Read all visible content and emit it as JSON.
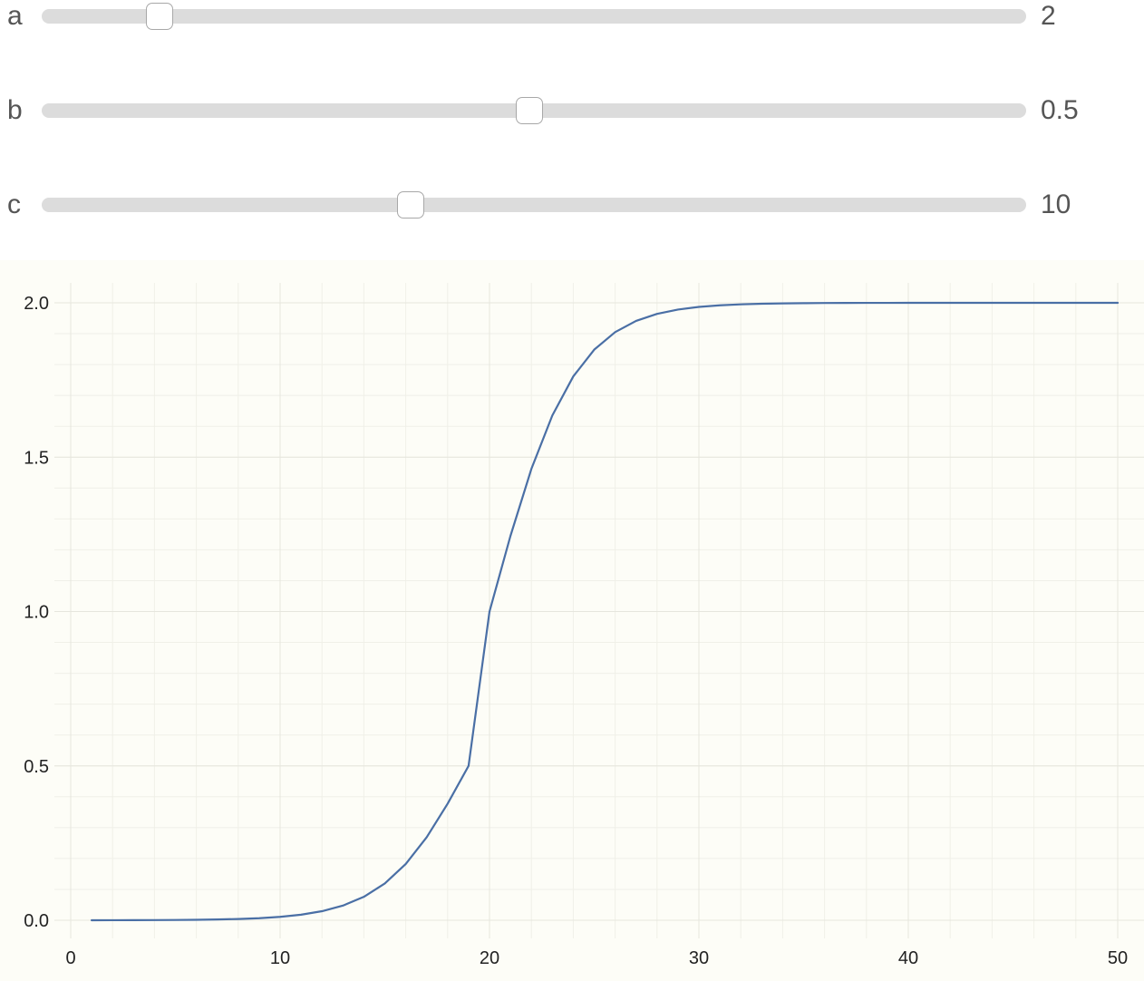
{
  "sliders": [
    {
      "label": "a",
      "value": "2",
      "fraction": 0.12
    },
    {
      "label": "b",
      "value": "0.5",
      "fraction": 0.495
    },
    {
      "label": "c",
      "value": "10",
      "fraction": 0.375
    }
  ],
  "chart_data": {
    "type": "line",
    "title": "",
    "xlabel": "",
    "ylabel": "",
    "xlim": [
      0,
      50
    ],
    "ylim": [
      0,
      2
    ],
    "x_ticks": [
      "0",
      "10",
      "20",
      "30",
      "40",
      "50"
    ],
    "y_ticks": [
      "0.0",
      "0.5",
      "1.0",
      "1.5",
      "2.0"
    ],
    "grid": true,
    "legend": "none",
    "line_color": "#4a6fa5",
    "series": [
      {
        "x": [
          1,
          2,
          3,
          4,
          5,
          6,
          7,
          8,
          9,
          10,
          11,
          12,
          13,
          14,
          15,
          16,
          17,
          18,
          19,
          20,
          21,
          22,
          23,
          24,
          25,
          26,
          27,
          28,
          29,
          30,
          31,
          32,
          33,
          34,
          35,
          36,
          37,
          38,
          39,
          40,
          41,
          42,
          43,
          44,
          45,
          46,
          47,
          48,
          49,
          50
        ],
        "y": [
          0.0001,
          0.0002,
          0.0003,
          0.0005,
          0.0009,
          0.0015,
          0.0025,
          0.0041,
          0.0067,
          0.011,
          0.018,
          0.0293,
          0.0474,
          0.0759,
          0.1192,
          0.1824,
          0.2689,
          0.3775,
          0.5,
          1.0,
          1.2449,
          1.4621,
          1.6351,
          1.7616,
          1.8483,
          1.9051,
          1.9414,
          1.9641,
          1.9782,
          1.9868,
          1.992,
          1.9951,
          1.9971,
          1.9982,
          1.9989,
          1.9994,
          1.9996,
          1.9998,
          1.9998,
          1.9999,
          1.9999,
          2.0,
          2.0,
          2.0,
          2.0,
          2.0,
          2.0,
          2.0,
          2.0,
          2.0
        ]
      }
    ]
  }
}
